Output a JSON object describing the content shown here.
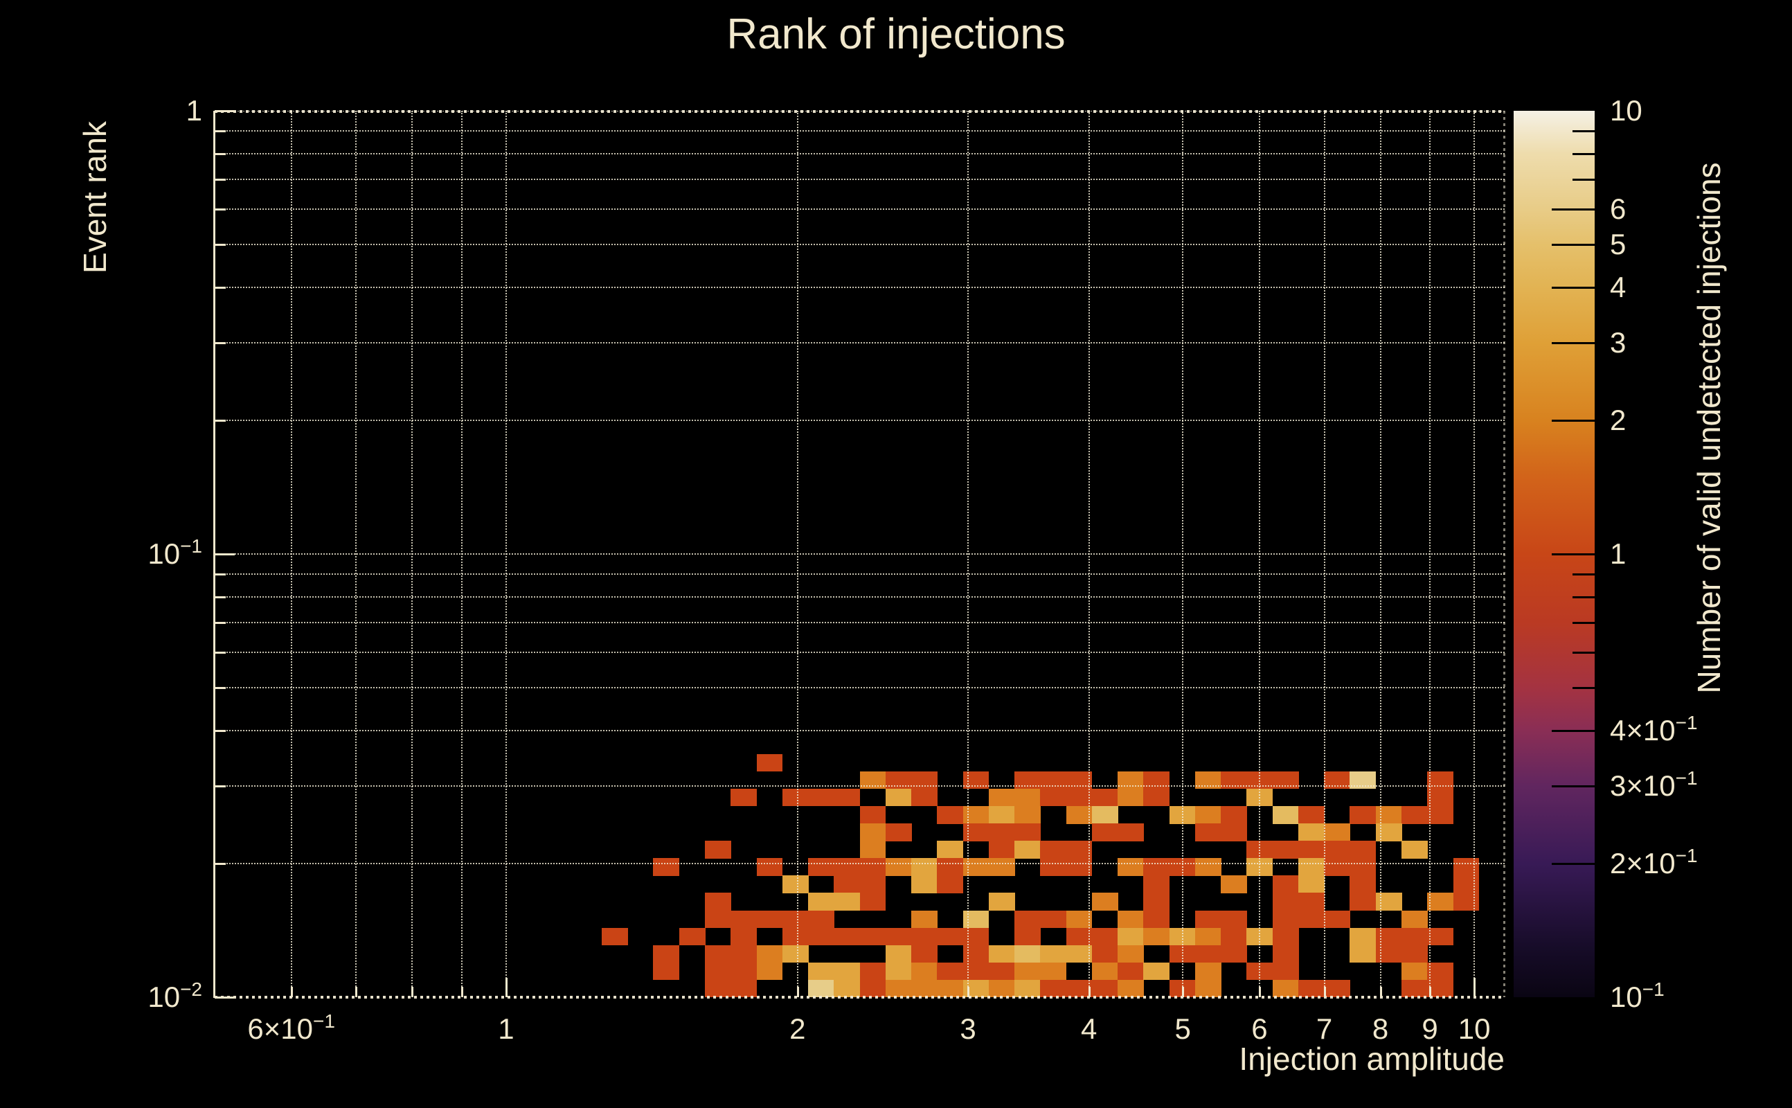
{
  "chart_data": {
    "type": "heatmap",
    "title": "Rank of injections",
    "xlabel": "Injection amplitude",
    "ylabel": "Event rank",
    "zlabel": "Number of valid undetected injections",
    "x_scale": "log",
    "y_scale": "log",
    "z_scale": "log",
    "xlim": [
      0.5,
      10.75
    ],
    "ylim": [
      0.01,
      1
    ],
    "zlim": [
      0.1,
      10
    ],
    "background_color": "#000000",
    "text_color": "#f1e8cd",
    "grid_color": "#f2ebd5",
    "grid_style": "dotted",
    "legend_position": "right-colorbar",
    "x_ticks": [
      {
        "value": 0.6,
        "base": "6×10",
        "exp": "−1"
      },
      {
        "value": 1,
        "base": "1",
        "exp": ""
      },
      {
        "value": 2,
        "base": "2",
        "exp": ""
      },
      {
        "value": 3,
        "base": "3",
        "exp": ""
      },
      {
        "value": 4,
        "base": "4",
        "exp": ""
      },
      {
        "value": 5,
        "base": "5",
        "exp": ""
      },
      {
        "value": 6,
        "base": "6",
        "exp": ""
      },
      {
        "value": 7,
        "base": "7",
        "exp": ""
      },
      {
        "value": 8,
        "base": "8",
        "exp": ""
      },
      {
        "value": 9,
        "base": "9",
        "exp": ""
      },
      {
        "value": 10,
        "base": "10",
        "exp": ""
      }
    ],
    "y_ticks": [
      {
        "value": 1,
        "base": "1",
        "exp": ""
      },
      {
        "value": 0.1,
        "base": "10",
        "exp": "−1"
      },
      {
        "value": 0.01,
        "base": "10",
        "exp": "−2"
      }
    ],
    "z_ticks": [
      {
        "value": 10,
        "base": "10",
        "exp": ""
      },
      {
        "value": 6,
        "base": "6",
        "exp": ""
      },
      {
        "value": 5,
        "base": "5",
        "exp": ""
      },
      {
        "value": 4,
        "base": "4",
        "exp": ""
      },
      {
        "value": 3,
        "base": "3",
        "exp": ""
      },
      {
        "value": 2,
        "base": "2",
        "exp": ""
      },
      {
        "value": 1,
        "base": "1",
        "exp": ""
      },
      {
        "value": 0.4,
        "base": "4×10",
        "exp": "−1"
      },
      {
        "value": 0.3,
        "base": "3×10",
        "exp": "−1"
      },
      {
        "value": 0.2,
        "base": "2×10",
        "exp": "−1"
      },
      {
        "value": 0.1,
        "base": "10",
        "exp": "−1"
      }
    ],
    "z_minor_ticks": [
      9,
      8,
      7,
      0.9,
      0.8,
      0.7,
      0.6,
      0.5
    ],
    "x_grid_values": [
      0.6,
      0.7,
      0.8,
      0.9,
      1,
      2,
      3,
      4,
      5,
      6,
      7,
      8,
      9,
      10
    ],
    "y_grid_values": [
      1,
      0.9,
      0.8,
      0.7,
      0.6,
      0.5,
      0.4,
      0.3,
      0.2,
      0.1,
      0.09,
      0.08,
      0.07,
      0.06,
      0.05,
      0.04,
      0.03,
      0.02
    ],
    "colorbar_gradient": [
      {
        "value": 0.1,
        "color": "#0a0513"
      },
      {
        "value": 0.13,
        "color": "#170c29"
      },
      {
        "value": 0.2,
        "color": "#381a56"
      },
      {
        "value": 0.3,
        "color": "#61265f"
      },
      {
        "value": 0.4,
        "color": "#8a2e55"
      },
      {
        "value": 0.5,
        "color": "#a43341"
      },
      {
        "value": 0.7,
        "color": "#ba3a23"
      },
      {
        "value": 1,
        "color": "#c84617"
      },
      {
        "value": 1.5,
        "color": "#d2641a"
      },
      {
        "value": 2,
        "color": "#d8821f"
      },
      {
        "value": 3,
        "color": "#dfa037"
      },
      {
        "value": 4,
        "color": "#e2b353"
      },
      {
        "value": 5,
        "color": "#e5c06b"
      },
      {
        "value": 6,
        "color": "#e8cc87"
      },
      {
        "value": 8,
        "color": "#eedcac"
      },
      {
        "value": 10,
        "color": "#f5f1e5"
      }
    ],
    "heatmap": {
      "total_x_bins": 50,
      "total_y_bins": 51,
      "first_col_bin": 15,
      "value_colors": {
        "1": "#ca4415",
        "2": "#dc7e20",
        "3": "#e2a53e",
        "4": "#e4bb60",
        "5": "#e7cd89"
      },
      "rows_top_to_bottom": [
        "......1............................",
        "..........211.1.111.21.2111.15..1..",
        ".....1.111.31..2211121...3......1..",
        "..........1..1232.24..321.41.1211..",
        "..........21..111..11..11..32.3....",
        "....1.....2..3.1311......11111.3...",
        "..1...1.11123122.11.2112.3.311...1.",
        ".......3.11.31.......1..2.13.1...1.",
        "....1...331....3...2.1....11.13.21.",
        "....11111...2.4.112.21.11.111..2...",
        "1..1.1.11111111.1.113232131..3111..",
        "..1.1123...31.1343312.111.1..311...",
        "..1.112.3313211122.213.2.11....21..",
        "....11..5312223231112.12..211..11.."
      ]
    }
  }
}
